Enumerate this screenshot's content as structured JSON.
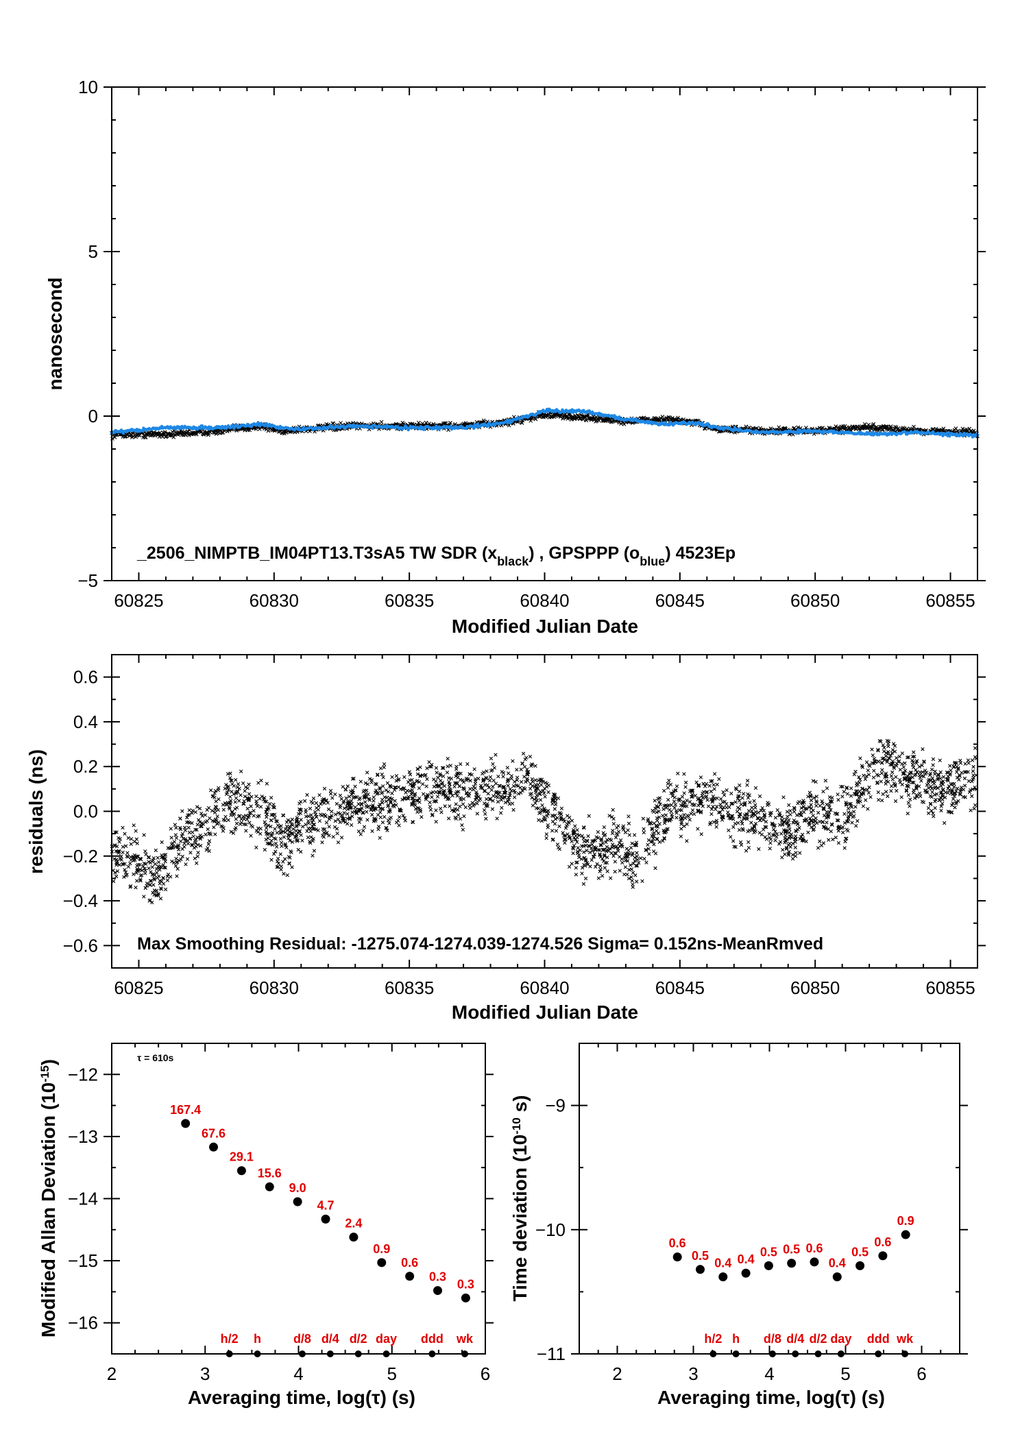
{
  "colors": {
    "series_black": "#000000",
    "series_blue": "#1e88e5",
    "labels_red": "#e00000"
  },
  "charts": {
    "top": {
      "ylabel": "nanosecond",
      "xlabel": "Modified Julian Date",
      "annotation": {
        "prefix": "_2506_NIMPTB_IM04PT13.T3sA5     TW SDR (x",
        "sub1": "black",
        "mid": ") ,  GPSPPP (o",
        "sub2": "blue",
        "suffix": ")  4523Ep"
      }
    },
    "middle": {
      "ylabel": "residuals (ns)",
      "xlabel": "Modified Julian Date",
      "annotation": "Max Smoothing Residual: -1275.074-1274.039-1274.526  Sigma= 0.152ns-MeanRmved"
    },
    "bottom_left": {
      "ylabel_main": "Modified Allan Deviation (10",
      "ylabel_sup": "-15",
      "ylabel_end": ")",
      "xlabel": "Averaging time, log(τ) (s)",
      "tau_note": "τ = 610s"
    },
    "bottom_right": {
      "ylabel_main": "Time deviation (10",
      "ylabel_sup": "-10",
      "ylabel_end": " s)",
      "xlabel": "Averaging time, log(τ) (s)"
    }
  },
  "chart_data": [
    {
      "type": "scatter",
      "name": "time-comparison",
      "xlim": [
        60824,
        60856
      ],
      "ylim": [
        -5,
        10
      ],
      "x_ticks": [
        60825,
        60830,
        60835,
        60840,
        60845,
        60850,
        60855
      ],
      "y_ticks": [
        -5,
        0,
        5,
        10
      ],
      "x_tick_labels": [
        "60825",
        "60830",
        "60835",
        "60840",
        "60845",
        "60850",
        "60855"
      ],
      "y_tick_labels": [
        "−5",
        "0",
        "5",
        "10"
      ],
      "series": [
        {
          "name": "TW SDR",
          "marker": "x",
          "trend": {
            "x": [
              60824,
              60826,
              60828,
              60829.5,
              60830.3,
              60831,
              60833,
              60835,
              60837,
              60838.5,
              60840,
              60841.5,
              60843,
              60844.5,
              60845.5,
              60846.5,
              60848,
              60850,
              60852,
              60854,
              60856
            ],
            "y": [
              -0.55,
              -0.55,
              -0.45,
              -0.3,
              -0.45,
              -0.4,
              -0.3,
              -0.3,
              -0.3,
              -0.2,
              0.05,
              -0.05,
              -0.15,
              -0.1,
              -0.2,
              -0.4,
              -0.45,
              -0.45,
              -0.35,
              -0.45,
              -0.5
            ]
          }
        },
        {
          "name": "GPSPPP",
          "marker": "o",
          "trend": {
            "x": [
              60824,
              60826,
              60828,
              60829.5,
              60830.3,
              60831,
              60833,
              60835,
              60837,
              60838.5,
              60840,
              60841.5,
              60843,
              60844.5,
              60845.5,
              60846.5,
              60848,
              60850,
              60852,
              60854,
              60856
            ],
            "y": [
              -0.5,
              -0.35,
              -0.35,
              -0.25,
              -0.35,
              -0.4,
              -0.3,
              -0.35,
              -0.35,
              -0.2,
              0.15,
              0.15,
              -0.1,
              -0.25,
              -0.2,
              -0.35,
              -0.5,
              -0.45,
              -0.55,
              -0.5,
              -0.6
            ]
          }
        }
      ]
    },
    {
      "type": "scatter",
      "name": "residuals",
      "xlim": [
        60824,
        60856
      ],
      "ylim": [
        -0.7,
        0.7
      ],
      "x_ticks": [
        60825,
        60830,
        60835,
        60840,
        60845,
        60850,
        60855
      ],
      "y_ticks": [
        -0.6,
        -0.4,
        -0.2,
        0.0,
        0.2,
        0.4,
        0.6
      ],
      "x_tick_labels": [
        "60825",
        "60830",
        "60835",
        "60840",
        "60845",
        "60850",
        "60855"
      ],
      "y_tick_labels": [
        "−0.6",
        "−0.4",
        "−0.2",
        "0.0",
        "0.2",
        "0.4",
        "0.6"
      ],
      "trend": {
        "x": [
          60824,
          60825,
          60825.7,
          60826.5,
          60827.5,
          60828.5,
          60829.5,
          60830.3,
          60831,
          60832.5,
          60834,
          60835.5,
          60837,
          60838.5,
          60839.5,
          60840.5,
          60841.5,
          60842.5,
          60843.5,
          60844.5,
          60845.5,
          60847,
          60848,
          60849,
          60850,
          60851,
          60852.3,
          60853.5,
          60854.5,
          60856
        ],
        "y": [
          -0.15,
          -0.25,
          -0.3,
          -0.15,
          -0.05,
          0.05,
          0.0,
          -0.15,
          -0.05,
          0.0,
          0.05,
          0.1,
          0.1,
          0.1,
          0.15,
          -0.05,
          -0.2,
          -0.15,
          -0.2,
          0.0,
          0.05,
          0.0,
          -0.05,
          -0.1,
          0.0,
          -0.05,
          0.2,
          0.15,
          0.1,
          0.15
        ]
      },
      "spread": 0.1
    },
    {
      "type": "scatter",
      "name": "modified-allan-deviation",
      "xlim": [
        2,
        6
      ],
      "ylim": [
        -16.5,
        -11.5
      ],
      "x_ticks": [
        2,
        3,
        4,
        5,
        6
      ],
      "y_ticks": [
        -12,
        -13,
        -14,
        -15,
        -16
      ],
      "x_tick_labels": [
        "2",
        "3",
        "4",
        "5",
        "6"
      ],
      "y_tick_labels": [
        "−12",
        "−13",
        "−14",
        "−15",
        "−16"
      ],
      "x": [
        2.79,
        3.09,
        3.39,
        3.69,
        3.99,
        4.29,
        4.59,
        4.89,
        5.19,
        5.49,
        5.79
      ],
      "y": [
        -12.79,
        -13.17,
        -13.55,
        -13.81,
        -14.05,
        -14.33,
        -14.62,
        -15.03,
        -15.25,
        -15.48,
        -15.6
      ],
      "labels": [
        "167.4",
        "67.6",
        "29.1",
        "15.6",
        "9.0",
        "4.7",
        "2.4",
        "0.9",
        "0.6",
        "0.3",
        "0.3"
      ],
      "markers": {
        "x": [
          3.26,
          3.56,
          4.04,
          4.34,
          4.64,
          4.94,
          5.43,
          5.78
        ],
        "labels": [
          "h/2",
          "h",
          "d/8",
          "d/4",
          "d/2",
          "day",
          "ddd",
          "wk"
        ]
      }
    },
    {
      "type": "scatter",
      "name": "time-deviation",
      "xlim": [
        1.5,
        6.5
      ],
      "ylim": [
        -11,
        -8.5
      ],
      "x_ticks": [
        2,
        3,
        4,
        5,
        6
      ],
      "y_ticks": [
        -9,
        -10,
        -11
      ],
      "x_tick_labels": [
        "2",
        "3",
        "4",
        "5",
        "6"
      ],
      "y_tick_labels": [
        "−9",
        "−10",
        "−11"
      ],
      "x": [
        2.79,
        3.09,
        3.39,
        3.69,
        3.99,
        4.29,
        4.59,
        4.89,
        5.19,
        5.49,
        5.79
      ],
      "y": [
        -10.22,
        -10.32,
        -10.38,
        -10.35,
        -10.29,
        -10.27,
        -10.26,
        -10.38,
        -10.29,
        -10.21,
        -10.04
      ],
      "labels": [
        "0.6",
        "0.5",
        "0.4",
        "0.4",
        "0.5",
        "0.5",
        "0.6",
        "0.4",
        "0.5",
        "0.6",
        "0.9"
      ],
      "markers": {
        "x": [
          3.26,
          3.56,
          4.04,
          4.34,
          4.64,
          4.94,
          5.43,
          5.78
        ],
        "labels": [
          "h/2",
          "h",
          "d/8",
          "d/4",
          "d/2",
          "day",
          "ddd",
          "wk"
        ]
      }
    }
  ]
}
